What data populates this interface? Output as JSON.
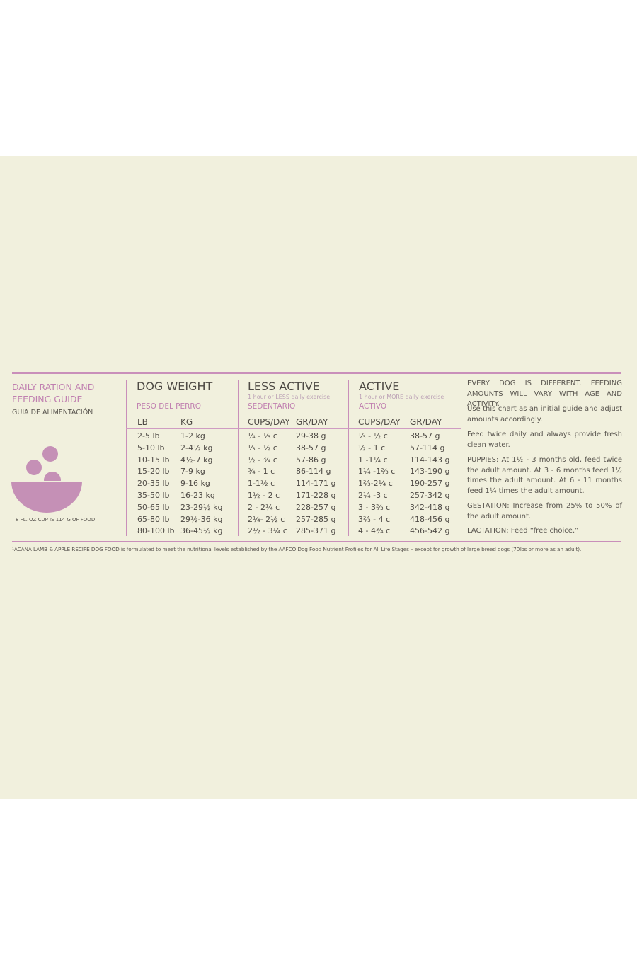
{
  "left": {
    "title": "DAILY RATION AND FEEDING GUIDE",
    "subtitle": "GUIA DE ALIMENTACIÓN",
    "cup_note": "8 FL. OZ CUP IS 114 G OF FOOD"
  },
  "table": {
    "groups": [
      {
        "title": "DOG WEIGHT",
        "note": null,
        "spanish": "PESO DEL PERRO"
      },
      {
        "title": "LESS ACTIVE",
        "note": "1 hour or LESS daily exercise",
        "spanish": "SEDENTARIO"
      },
      {
        "title": "ACTIVE",
        "note": "1 hour or MORE daily exercise",
        "spanish": "ACTIVO"
      }
    ],
    "columns": [
      "LB",
      "KG",
      "CUPS/DAY",
      "GR/DAY",
      "CUPS/DAY",
      "GR/DAY"
    ],
    "rows": [
      [
        "2-5 lb",
        "1-2 kg",
        "¼ - ⅓ c",
        "29-38 g",
        "⅓ - ½ c",
        "38-57 g"
      ],
      [
        "5-10 lb",
        "2-4½ kg",
        "⅓ - ½ c",
        "38-57 g",
        "½ - 1 c",
        "57-114 g"
      ],
      [
        "10-15 lb",
        "4½-7 kg",
        "½ - ¾ c",
        "57-86 g",
        "1 -1¼ c",
        "114-143 g"
      ],
      [
        "15-20 lb",
        "7-9 kg",
        "¾ - 1 c",
        "86-114 g",
        "1¼ -1⅔ c",
        "143-190 g"
      ],
      [
        "20-35 lb",
        "9-16 kg",
        "1-1½ c",
        "114-171 g",
        "1⅔-2¼ c",
        "190-257 g"
      ],
      [
        "35-50 lb",
        "16-23 kg",
        "1½ - 2 c",
        "171-228 g",
        "2¼ -3 c",
        "257-342 g"
      ],
      [
        "50-65 lb",
        "23-29½ kg",
        "2 - 2¼ c",
        "228-257 g",
        "3 - 3⅔ c",
        "342-418 g"
      ],
      [
        "65-80 lb",
        "29½-36 kg",
        "2¼- 2½ c",
        "257-285 g",
        "3⅔ - 4 c",
        "418-456 g"
      ],
      [
        "80-100 lb",
        "36-45½ kg",
        "2½ - 3¼ c",
        "285-371 g",
        "4 - 4¾ c",
        "456-542 g"
      ]
    ]
  },
  "notes": [
    "EVERY DOG IS DIFFERENT. FEEDING AMOUNTS WILL VARY WITH AGE AND ACTIVITY.",
    "Use this chart as an initial guide and adjust amounts accordingly.",
    "Feed twice daily and always provide fresh clean water.",
    "PUPPIES: At 1½ - 3 months old, feed twice the adult amount. At 3 - 6 months feed 1½ times the adult amount. At 6 - 11 months feed 1¼ times the adult amount.",
    "GESTATION: Increase from 25% to 50% of the adult amount.",
    "LACTATION: Feed “free choice.”"
  ],
  "footnote": "¹ACANA LAMB & APPLE RECIPE DOG FOOD is formulated to meet the nutritional levels established by the AAFCO Dog Food Nutrient Profiles for All Life Stages – except for growth of large breed dogs (70lbs or more as an adult)."
}
